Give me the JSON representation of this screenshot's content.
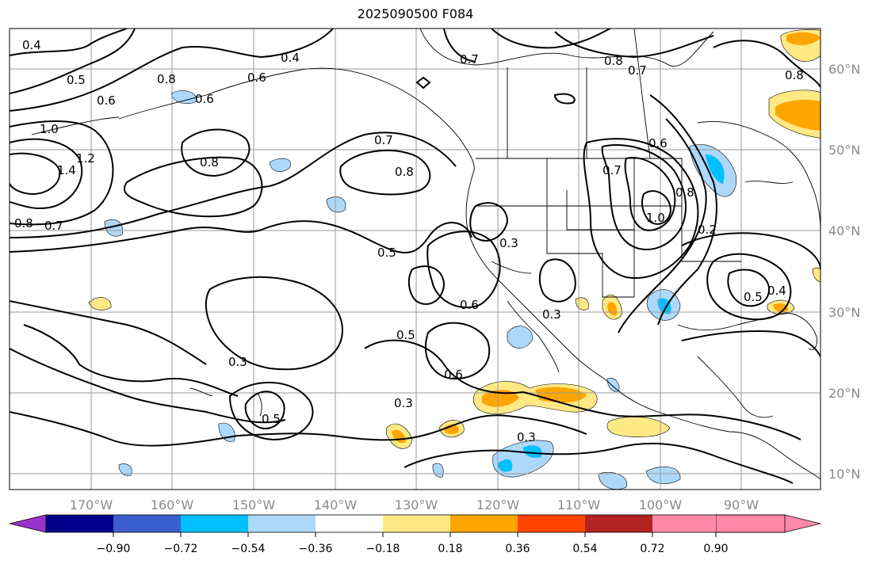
{
  "title": "2025090500 F084",
  "lon_labels": [
    "170°W",
    "160°W",
    "150°W",
    "140°W",
    "130°W",
    "120°W",
    "110°W",
    "100°W",
    "90°W"
  ],
  "lat_labels": [
    "60°N",
    "50°N",
    "40°N",
    "30°N",
    "20°N",
    "10°N"
  ],
  "contour_labels": [
    "0.4",
    "0.5",
    "0.6",
    "1.0",
    "1.4",
    "1.2",
    "0.8",
    "0.7",
    "0.8",
    "0.6",
    "0.8",
    "0.4",
    "0.6",
    "0.7",
    "0.8",
    "0.7",
    "0.7",
    "0.8",
    "0.6",
    "0.7",
    "1.0",
    "0.2",
    "0.3",
    "0.5",
    "0.6",
    "0.5",
    "0.3",
    "0.6",
    "0.3",
    "0.3",
    "0.5",
    "0.3",
    "0.5",
    "0.4",
    "0.8",
    "0.8"
  ],
  "colorbar": {
    "tick_labels": [
      "−0.90",
      "−0.72",
      "−0.54",
      "−0.36",
      "−0.18",
      "0.18",
      "0.36",
      "0.54",
      "0.72",
      "0.90"
    ],
    "colors": [
      "#9932cc",
      "#00008b",
      "#3a5fcd",
      "#00bfff",
      "#add8fa",
      "#ffffff",
      "#ffe985",
      "#ffa500",
      "#ff4500",
      "#b22222",
      "#ff88aa"
    ]
  }
}
